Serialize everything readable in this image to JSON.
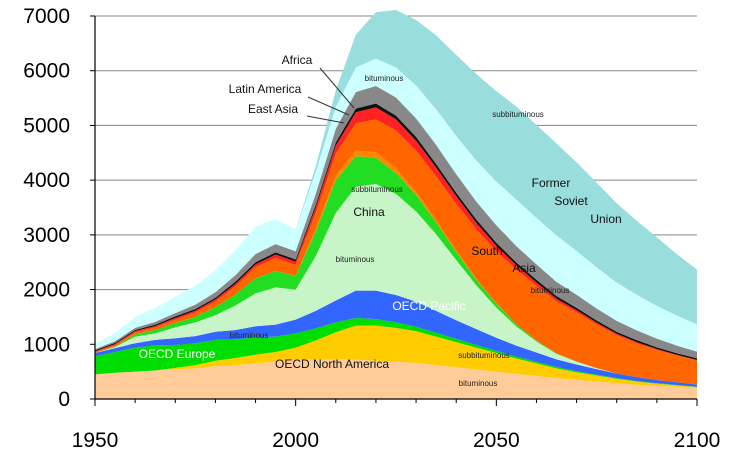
{
  "chart_data": {
    "type": "area",
    "stacked": true,
    "x": [
      1950,
      1955,
      1960,
      1965,
      1970,
      1975,
      1980,
      1985,
      1990,
      1995,
      2000,
      2005,
      2010,
      2015,
      2020,
      2025,
      2030,
      2035,
      2040,
      2045,
      2050,
      2055,
      2060,
      2065,
      2070,
      2075,
      2080,
      2085,
      2090,
      2095,
      2100
    ],
    "xlim": [
      1950,
      2100
    ],
    "ylim": [
      0,
      7000
    ],
    "xticks": [
      1950,
      2000,
      2050,
      2100
    ],
    "yticks": [
      0,
      1000,
      2000,
      3000,
      4000,
      5000,
      6000,
      7000
    ],
    "grid": true,
    "series": [
      {
        "name": "OECD North America bituminous",
        "color": "#ffcc99",
        "values": [
          450,
          480,
          500,
          520,
          540,
          560,
          600,
          620,
          650,
          680,
          720,
          720,
          720,
          720,
          700,
          680,
          660,
          620,
          580,
          540,
          500,
          460,
          420,
          380,
          350,
          320,
          290,
          260,
          240,
          220,
          200
        ]
      },
      {
        "name": "OECD North America subbituminous",
        "color": "#ffcc00",
        "values": [
          0,
          0,
          0,
          0,
          30,
          60,
          100,
          130,
          160,
          180,
          220,
          350,
          500,
          620,
          640,
          620,
          580,
          520,
          460,
          400,
          340,
          280,
          230,
          180,
          140,
          110,
          80,
          60,
          40,
          30,
          20
        ]
      },
      {
        "name": "OECD Europe",
        "color": "#00dd00",
        "values": [
          330,
          380,
          440,
          460,
          420,
          400,
          380,
          340,
          320,
          280,
          260,
          220,
          180,
          140,
          120,
          100,
          80,
          70,
          60,
          50,
          40,
          35,
          30,
          25,
          20,
          15,
          12,
          10,
          8,
          6,
          5
        ]
      },
      {
        "name": "OECD Pacific",
        "color": "#3366ff",
        "values": [
          60,
          70,
          80,
          100,
          120,
          130,
          150,
          170,
          200,
          220,
          250,
          320,
          400,
          500,
          520,
          500,
          460,
          400,
          340,
          290,
          240,
          200,
          170,
          140,
          120,
          100,
          85,
          70,
          60,
          50,
          40
        ]
      },
      {
        "name": "China bituminous",
        "color": "#c8f5c8",
        "values": [
          0,
          20,
          120,
          120,
          200,
          250,
          300,
          450,
          600,
          680,
          550,
          1000,
          1600,
          1900,
          1950,
          1850,
          1650,
          1400,
          1100,
          800,
          550,
          350,
          200,
          100,
          50,
          20,
          0,
          0,
          0,
          0,
          0
        ]
      },
      {
        "name": "China subbituminous",
        "color": "#22dd22",
        "values": [
          0,
          10,
          40,
          60,
          80,
          100,
          150,
          200,
          280,
          300,
          250,
          450,
          600,
          560,
          480,
          380,
          300,
          220,
          150,
          100,
          70,
          40,
          20,
          10,
          5,
          0,
          0,
          0,
          0,
          0,
          0
        ]
      },
      {
        "name": "South Asia subbituminous",
        "color": "#ff8800",
        "values": [
          0,
          0,
          0,
          0,
          0,
          0,
          0,
          0,
          0,
          0,
          0,
          40,
          80,
          100,
          100,
          80,
          60,
          40,
          30,
          20,
          10,
          0,
          0,
          0,
          0,
          0,
          0,
          0,
          0,
          0,
          0
        ]
      },
      {
        "name": "South Asia bituminous",
        "color": "#ff6600",
        "values": [
          20,
          30,
          40,
          50,
          60,
          80,
          100,
          150,
          200,
          240,
          200,
          300,
          400,
          500,
          600,
          700,
          750,
          800,
          850,
          900,
          950,
          1000,
          1000,
          950,
          900,
          800,
          700,
          620,
          550,
          490,
          440
        ]
      },
      {
        "name": "East Asia",
        "color": "#ff2222",
        "values": [
          10,
          15,
          20,
          25,
          30,
          35,
          40,
          45,
          50,
          60,
          60,
          100,
          150,
          200,
          220,
          200,
          180,
          160,
          140,
          120,
          100,
          80,
          60,
          50,
          40,
          30,
          25,
          20,
          15,
          10,
          10
        ]
      },
      {
        "name": "Latin America",
        "color": "#111111",
        "values": [
          20,
          20,
          20,
          25,
          30,
          30,
          30,
          40,
          40,
          40,
          40,
          50,
          60,
          70,
          70,
          70,
          70,
          65,
          60,
          60,
          55,
          50,
          50,
          45,
          40,
          40,
          35,
          35,
          30,
          30,
          30
        ]
      },
      {
        "name": "Africa",
        "color": "#888888",
        "values": [
          20,
          30,
          40,
          50,
          60,
          80,
          100,
          120,
          150,
          150,
          150,
          200,
          250,
          300,
          320,
          330,
          340,
          350,
          340,
          330,
          320,
          300,
          280,
          260,
          240,
          220,
          200,
          180,
          160,
          140,
          120
        ]
      },
      {
        "name": "Former Soviet Union bituminous",
        "color": "#ccffff",
        "values": [
          100,
          150,
          200,
          250,
          300,
          350,
          400,
          450,
          500,
          450,
          400,
          400,
          400,
          450,
          500,
          550,
          600,
          650,
          700,
          750,
          800,
          850,
          850,
          850,
          800,
          750,
          700,
          650,
          600,
          550,
          500
        ]
      },
      {
        "name": "Former Soviet Union subbituminous",
        "color": "#99dddd",
        "values": [
          0,
          0,
          0,
          0,
          0,
          0,
          0,
          0,
          0,
          0,
          0,
          100,
          300,
          600,
          850,
          1050,
          1200,
          1350,
          1480,
          1580,
          1650,
          1700,
          1700,
          1680,
          1620,
          1550,
          1450,
          1350,
          1250,
          1120,
          1000
        ]
      }
    ],
    "annotations": [
      {
        "text": "Africa",
        "style": "lbl"
      },
      {
        "text": "Latin America",
        "style": "lbl"
      },
      {
        "text": "East Asia",
        "style": "lbl"
      },
      {
        "text": "bituminous",
        "style": "lbl-sm"
      },
      {
        "text": "subbituminous",
        "style": "lbl-sm"
      },
      {
        "text": "Former",
        "style": "lbl"
      },
      {
        "text": "Soviet",
        "style": "lbl"
      },
      {
        "text": "Union",
        "style": "lbl"
      },
      {
        "text": "subbituminous",
        "style": "lbl-sm"
      },
      {
        "text": "China",
        "style": "lbl"
      },
      {
        "text": "bituminous",
        "style": "lbl-sm"
      },
      {
        "text": "South",
        "style": "lbl"
      },
      {
        "text": "Asia",
        "style": "lbl"
      },
      {
        "text": "bituminous",
        "style": "lbl-sm"
      },
      {
        "text": "OECD Pacific",
        "style": "lbl-white"
      },
      {
        "text": "bituminous",
        "style": "lbl-sm"
      },
      {
        "text": "OECD Europe",
        "style": "lbl-white"
      },
      {
        "text": "OECD North America",
        "style": "lbl"
      },
      {
        "text": "subbituminous",
        "style": "lbl-sm"
      },
      {
        "text": "bituminous",
        "style": "lbl-sm"
      }
    ]
  }
}
